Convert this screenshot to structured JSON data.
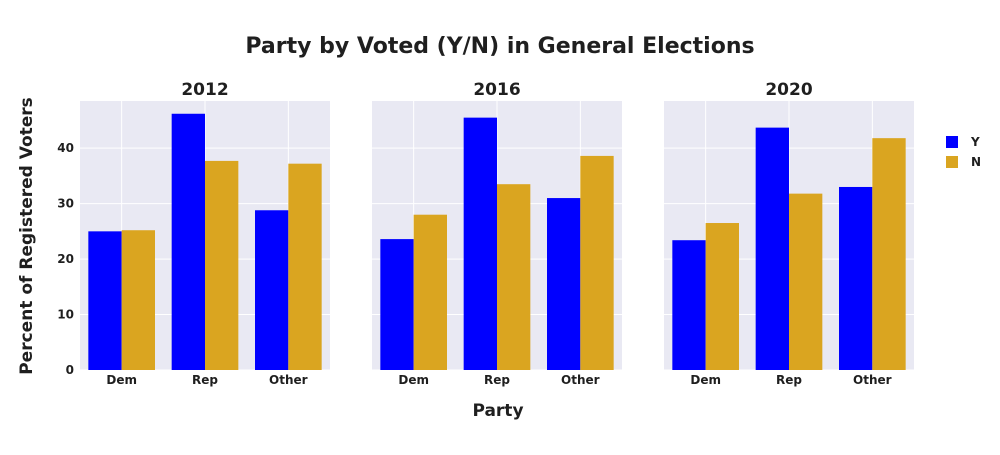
{
  "chart_data": {
    "type": "bar",
    "title": "Party by Voted (Y/N) in General Elections",
    "xlabel": "Party",
    "ylabel": "Percent of Registered Voters",
    "categories": [
      "Dem",
      "Rep",
      "Other"
    ],
    "ylim": [
      0,
      48.5
    ],
    "yticks": [
      "0",
      "10",
      "20",
      "30",
      "40"
    ],
    "legend_position": "right",
    "grid": true,
    "colors": {
      "Y": "#0000ff",
      "N": "#daa520",
      "plot_bg": "#e9e9f3",
      "grid": "#ffffff"
    },
    "panels": [
      {
        "title": "2012",
        "series": [
          {
            "name": "Y",
            "values": [
              25.0,
              46.2,
              28.8
            ]
          },
          {
            "name": "N",
            "values": [
              25.2,
              37.7,
              37.2
            ]
          }
        ]
      },
      {
        "title": "2016",
        "series": [
          {
            "name": "Y",
            "values": [
              23.6,
              45.5,
              31.0
            ]
          },
          {
            "name": "N",
            "values": [
              28.0,
              33.5,
              38.6
            ]
          }
        ]
      },
      {
        "title": "2020",
        "series": [
          {
            "name": "Y",
            "values": [
              23.4,
              43.7,
              33.0
            ]
          },
          {
            "name": "N",
            "values": [
              26.5,
              31.8,
              41.8
            ]
          }
        ]
      }
    ]
  },
  "legend": [
    {
      "label": "Y",
      "color": "#0000ff"
    },
    {
      "label": "N",
      "color": "#daa520"
    }
  ]
}
